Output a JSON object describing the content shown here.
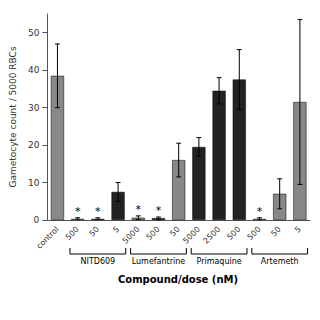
{
  "chart_data": {
    "type": "bar",
    "ylabel": "Gametocyte count / 5000 RBCs",
    "xlabel": "Compound/dose (nM)",
    "categories": [
      "control",
      "500",
      "50",
      "5",
      "5000",
      "500",
      "50",
      "5000",
      "2500",
      "500",
      "500",
      "50",
      "5"
    ],
    "values": [
      38.5,
      0.3,
      0.3,
      7.5,
      0.6,
      0.5,
      16.0,
      19.5,
      34.5,
      37.5,
      0.3,
      7.0,
      31.5
    ],
    "errors": [
      8.5,
      0.3,
      0.3,
      2.5,
      0.5,
      0.3,
      4.5,
      2.5,
      3.5,
      8.0,
      0.3,
      4.0,
      22.0
    ],
    "colors": [
      "#888888",
      "#888888",
      "#222222",
      "#222222",
      "#888888",
      "#222222",
      "#888888",
      "#222222",
      "#222222",
      "#222222",
      "#888888",
      "#888888",
      "#888888"
    ],
    "annotations": [
      {
        "index": 1,
        "text": "*"
      },
      {
        "index": 2,
        "text": "*"
      },
      {
        "index": 4,
        "text": "*"
      },
      {
        "index": 5,
        "text": "*"
      },
      {
        "index": 10,
        "text": "*"
      }
    ],
    "groups": [
      {
        "name": "NITD609",
        "indices": [
          1,
          3
        ]
      },
      {
        "name": "Lumefantrine",
        "indices": [
          4,
          6
        ]
      },
      {
        "name": "Primaquine",
        "indices": [
          7,
          9
        ]
      },
      {
        "name": "Artemeth",
        "indices": [
          10,
          12
        ]
      }
    ],
    "ylim": [
      0,
      55
    ],
    "yticks": [
      0,
      10,
      20,
      30,
      40,
      50
    ],
    "grid": false
  }
}
